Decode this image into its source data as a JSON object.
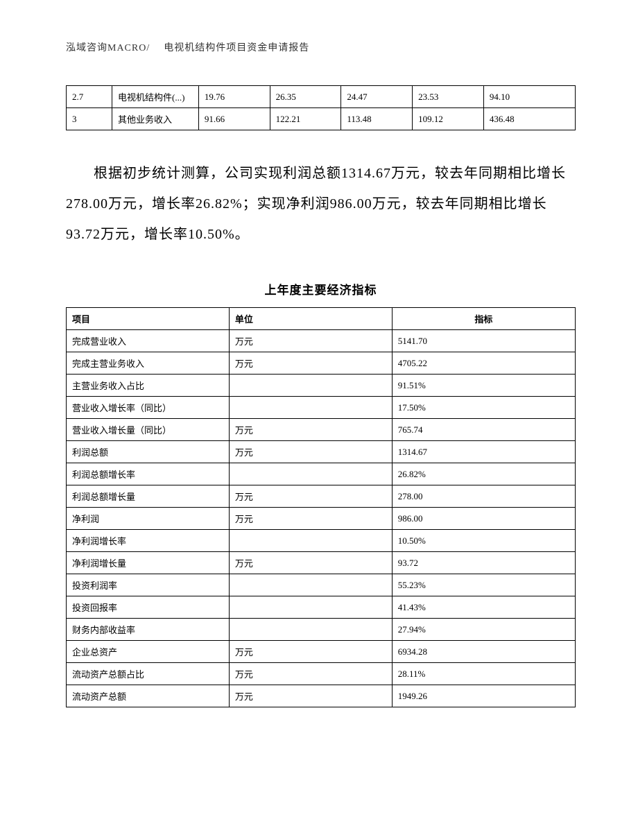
{
  "header": {
    "company": "泓域咨询MACRO/",
    "title": "电视机结构件项目资金申请报告"
  },
  "top_table": {
    "rows": [
      {
        "c1": "2.7",
        "c2": "电视机结构件(...)",
        "c3": "19.76",
        "c4": "26.35",
        "c5": "24.47",
        "c6": "23.53",
        "c7": "94.10"
      },
      {
        "c1": "3",
        "c2": "其他业务收入",
        "c3": "91.66",
        "c4": "122.21",
        "c5": "113.48",
        "c6": "109.12",
        "c7": "436.48"
      }
    ]
  },
  "paragraph": {
    "text": "根据初步统计测算，公司实现利润总额1314.67万元，较去年同期相比增长278.00万元，增长率26.82%；实现净利润986.00万元，较去年同期相比增长93.72万元，增长率10.50%。"
  },
  "main_table": {
    "title": "上年度主要经济指标",
    "columns": {
      "c1": "项目",
      "c2": "单位",
      "c3": "指标"
    },
    "rows": [
      {
        "c1": "完成营业收入",
        "c2": "万元",
        "c3": "5141.70"
      },
      {
        "c1": "完成主营业务收入",
        "c2": "万元",
        "c3": "4705.22"
      },
      {
        "c1": "主营业务收入占比",
        "c2": "",
        "c3": "91.51%"
      },
      {
        "c1": "营业收入增长率（同比）",
        "c2": "",
        "c3": "17.50%"
      },
      {
        "c1": "营业收入增长量（同比）",
        "c2": "万元",
        "c3": "765.74"
      },
      {
        "c1": "利润总额",
        "c2": "万元",
        "c3": "1314.67"
      },
      {
        "c1": "利润总额增长率",
        "c2": "",
        "c3": "26.82%"
      },
      {
        "c1": "利润总额增长量",
        "c2": "万元",
        "c3": "278.00"
      },
      {
        "c1": "净利润",
        "c2": "万元",
        "c3": "986.00"
      },
      {
        "c1": "净利润增长率",
        "c2": "",
        "c3": "10.50%"
      },
      {
        "c1": "净利润增长量",
        "c2": "万元",
        "c3": "93.72"
      },
      {
        "c1": "投资利润率",
        "c2": "",
        "c3": "55.23%"
      },
      {
        "c1": "投资回报率",
        "c2": "",
        "c3": "41.43%"
      },
      {
        "c1": "财务内部收益率",
        "c2": "",
        "c3": "27.94%"
      },
      {
        "c1": "企业总资产",
        "c2": "万元",
        "c3": "6934.28"
      },
      {
        "c1": "流动资产总额占比",
        "c2": "万元",
        "c3": "28.11%"
      },
      {
        "c1": "流动资产总额",
        "c2": "万元",
        "c3": "1949.26"
      }
    ]
  },
  "colors": {
    "text": "#000000",
    "border": "#000000",
    "background": "#ffffff"
  }
}
